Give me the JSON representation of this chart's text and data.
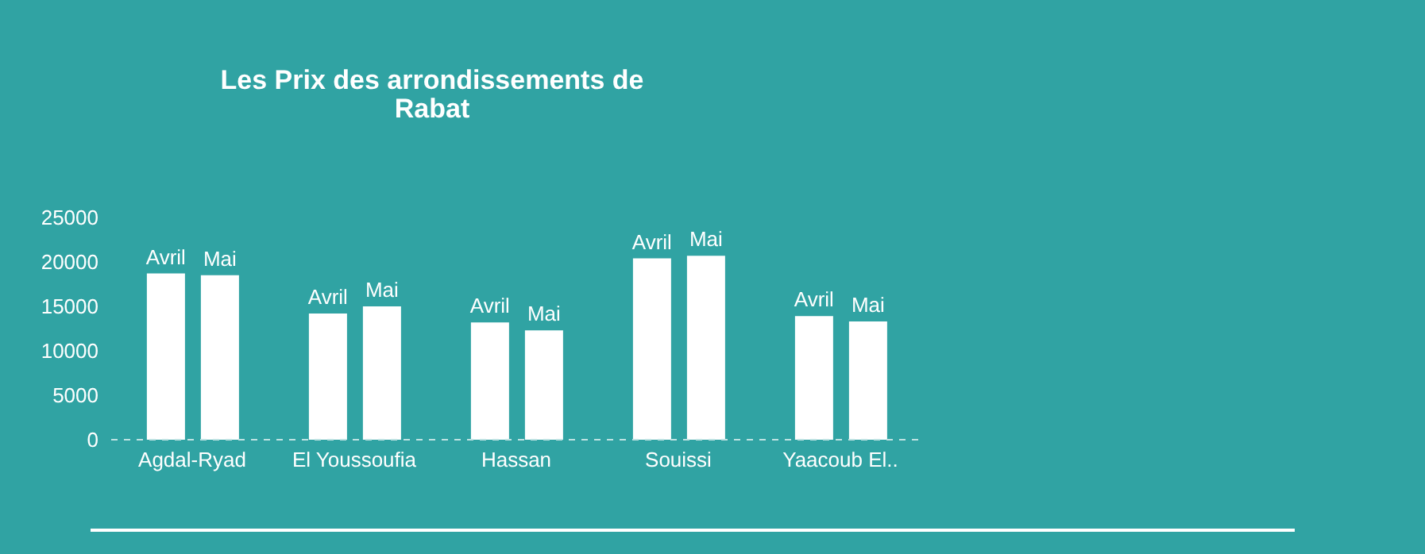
{
  "chart_data": {
    "type": "bar",
    "title": "Les Prix des arrondissements de Rabat",
    "categories": [
      "Agdal-Ryad",
      "El Youssoufia",
      "Hassan",
      "Souissi",
      "Yaacoub El.."
    ],
    "series": [
      {
        "name": "Avril",
        "color": "#ffffff",
        "values": [
          18700,
          14200,
          13200,
          20400,
          13900
        ]
      },
      {
        "name": "Mai",
        "color": "#ffffff",
        "values": [
          18500,
          15000,
          12300,
          20700,
          13300
        ]
      }
    ],
    "ylim": [
      0,
      25000
    ],
    "yticks": [
      0,
      5000,
      10000,
      15000,
      20000,
      25000
    ],
    "grid": false,
    "legend": false
  }
}
